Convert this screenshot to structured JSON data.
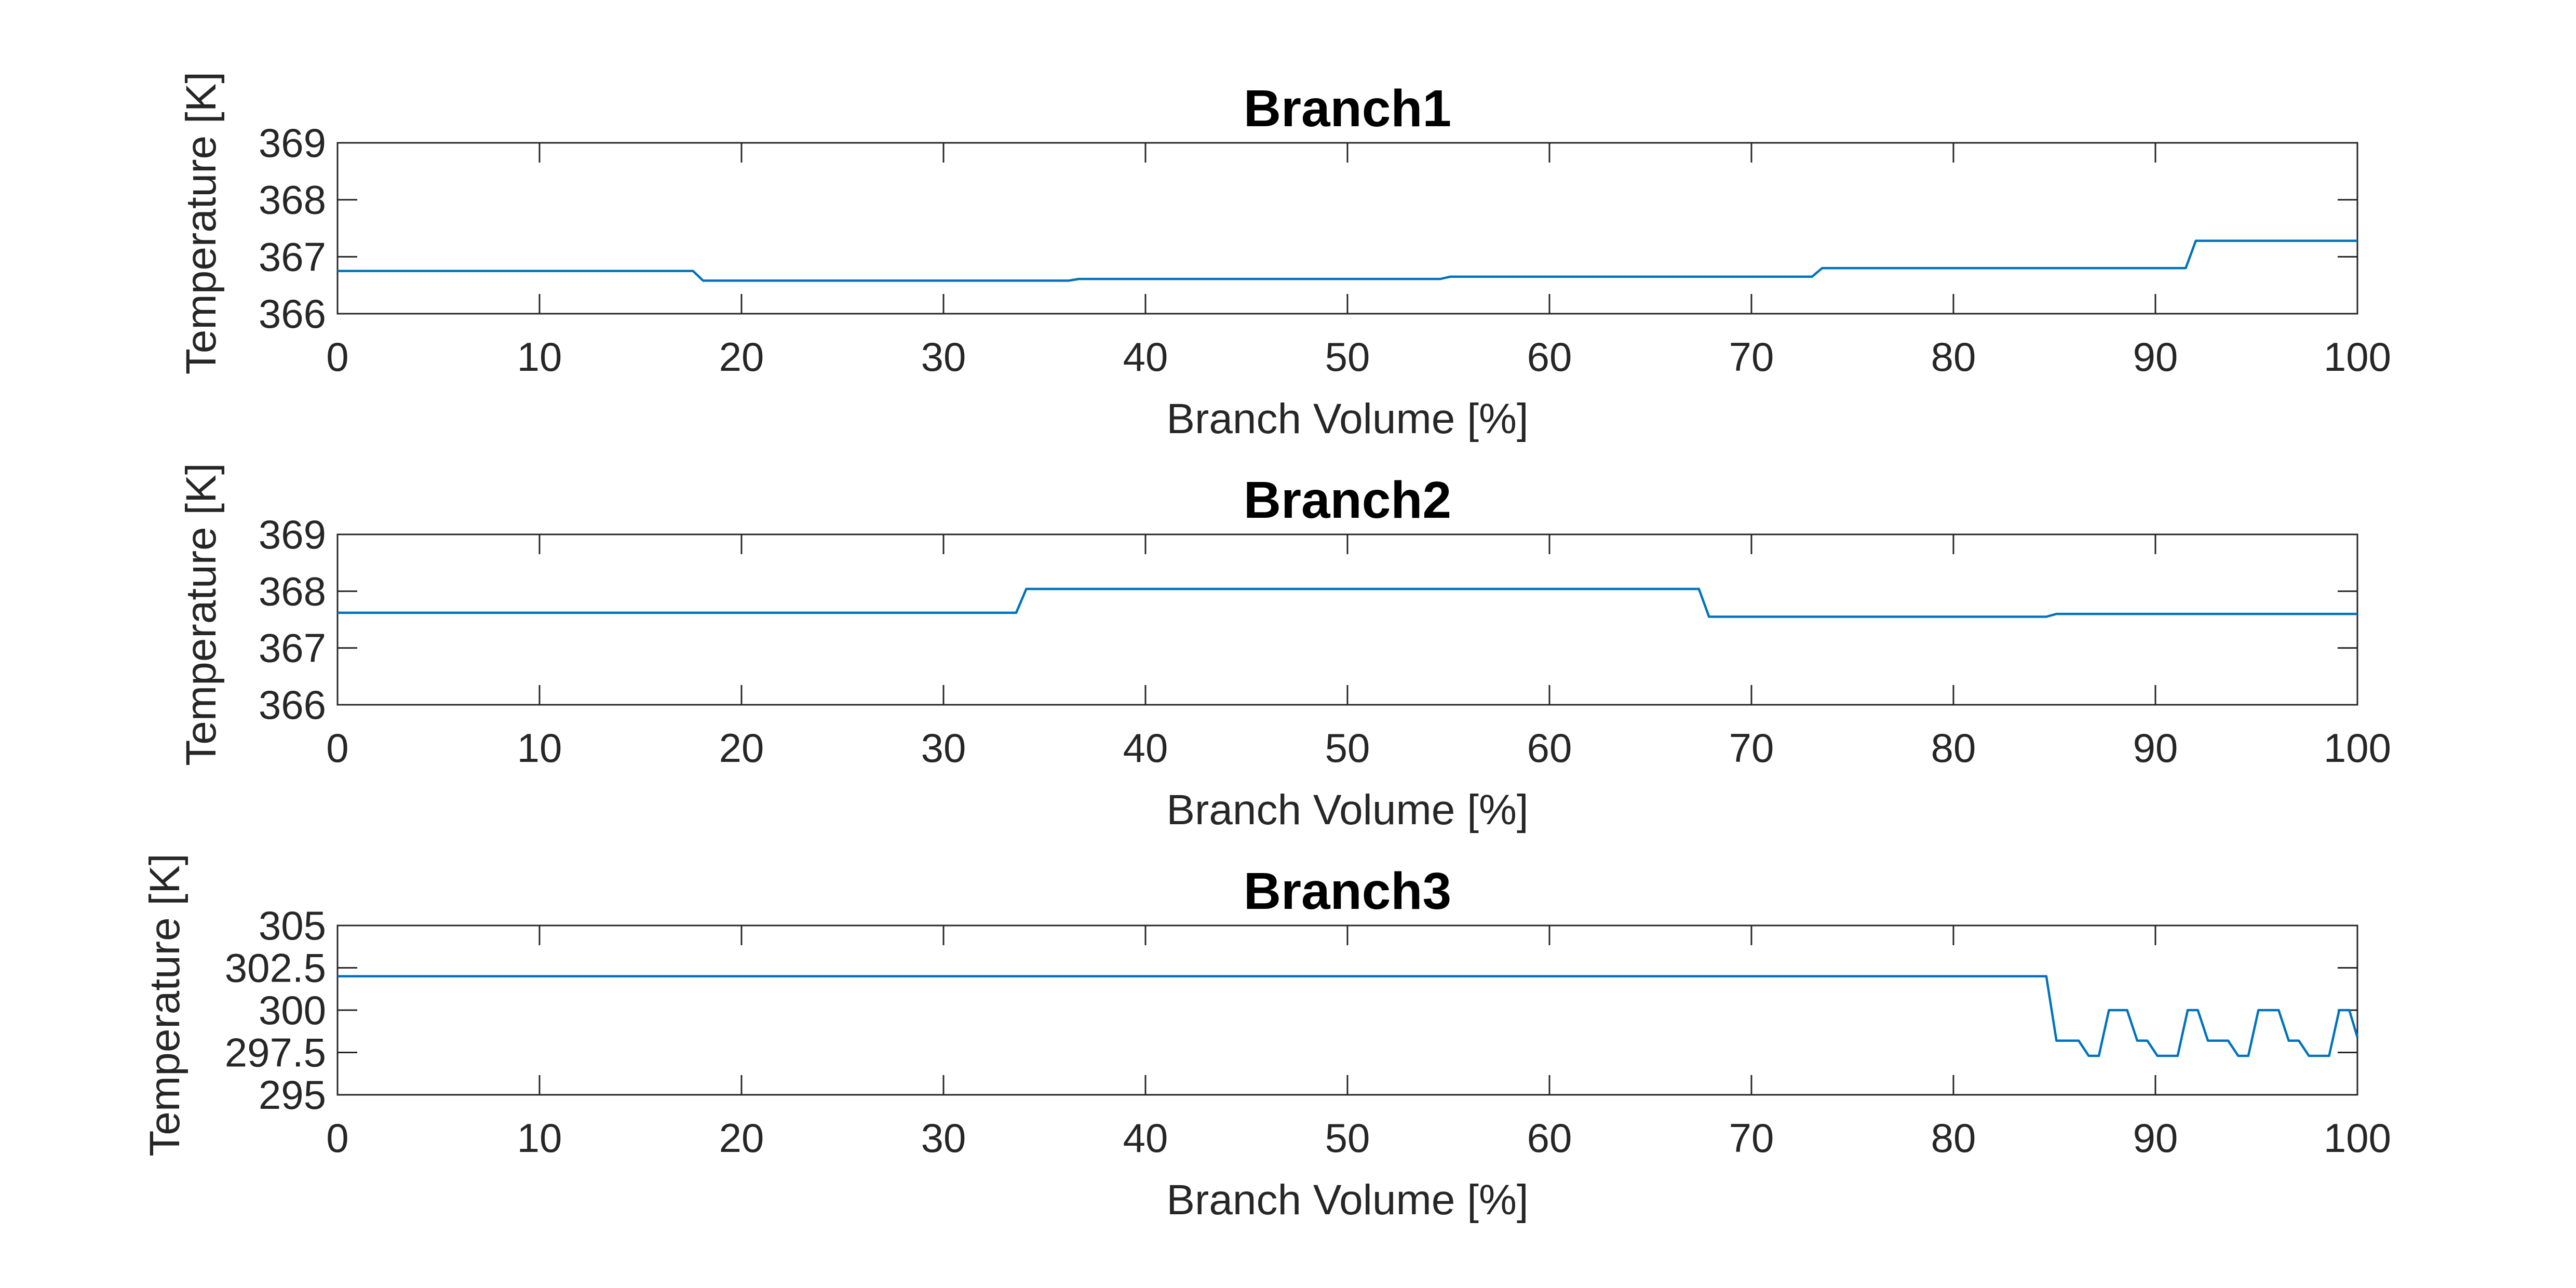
{
  "colors": {
    "line": "#0072bd",
    "axis": "#262626",
    "background": "#ffffff"
  },
  "chart_data": [
    {
      "type": "line",
      "title": "Branch1",
      "xlabel": "Branch Volume [%]",
      "ylabel": "Temperature [K]",
      "xlim": [
        0,
        100
      ],
      "ylim": [
        366,
        369
      ],
      "xticks": [
        "0",
        "10",
        "20",
        "30",
        "40",
        "50",
        "60",
        "70",
        "80",
        "90",
        "100"
      ],
      "yticks": [
        "366",
        "367",
        "368",
        "369"
      ],
      "grid": false,
      "series": [
        {
          "x": [
            0,
            17.6,
            18.1,
            36.2,
            36.7,
            54.6,
            55.1,
            73,
            73.5,
            91.5,
            92,
            100
          ],
          "y": [
            366.75,
            366.75,
            366.58,
            366.58,
            366.61,
            366.61,
            366.65,
            366.65,
            366.8,
            366.8,
            367.28,
            367.28
          ]
        }
      ]
    },
    {
      "type": "line",
      "title": "Branch2",
      "xlabel": "Branch Volume [%]",
      "ylabel": "Temperature [K]",
      "xlim": [
        0,
        100
      ],
      "ylim": [
        366,
        369
      ],
      "xticks": [
        "0",
        "10",
        "20",
        "30",
        "40",
        "50",
        "60",
        "70",
        "80",
        "90",
        "100"
      ],
      "yticks": [
        "366",
        "367",
        "368",
        "369"
      ],
      "grid": false,
      "series": [
        {
          "x": [
            0,
            33.6,
            34.1,
            67.4,
            67.9,
            84.6,
            85.1,
            100
          ],
          "y": [
            367.62,
            367.62,
            368.04,
            368.04,
            367.55,
            367.55,
            367.6,
            367.6
          ]
        }
      ]
    },
    {
      "type": "line",
      "title": "Branch3",
      "xlabel": "Branch Volume [%]",
      "ylabel": "Temperature [K]",
      "xlim": [
        0,
        100
      ],
      "ylim": [
        295,
        305
      ],
      "xticks": [
        "0",
        "10",
        "20",
        "30",
        "40",
        "50",
        "60",
        "70",
        "80",
        "90",
        "100"
      ],
      "yticks": [
        "295",
        "297.5",
        "300",
        "302.5",
        "305"
      ],
      "grid": false,
      "series": [
        {
          "x": [
            0,
            84.6,
            85.1,
            86.2,
            86.7,
            87.2,
            87.7,
            88.6,
            89.1,
            89.6,
            90.1,
            91.1,
            91.6,
            92.1,
            92.6,
            93.6,
            94.1,
            94.6,
            95.1,
            96.1,
            96.6,
            97.1,
            97.6,
            98.6,
            99.1,
            99.6,
            100
          ],
          "y": [
            302,
            302,
            298.2,
            298.2,
            297.3,
            297.3,
            300,
            300,
            298.2,
            298.2,
            297.3,
            297.3,
            300,
            300,
            298.2,
            298.2,
            297.3,
            297.3,
            300,
            300,
            298.2,
            298.2,
            297.3,
            297.3,
            300,
            300,
            298.4
          ]
        }
      ]
    }
  ]
}
